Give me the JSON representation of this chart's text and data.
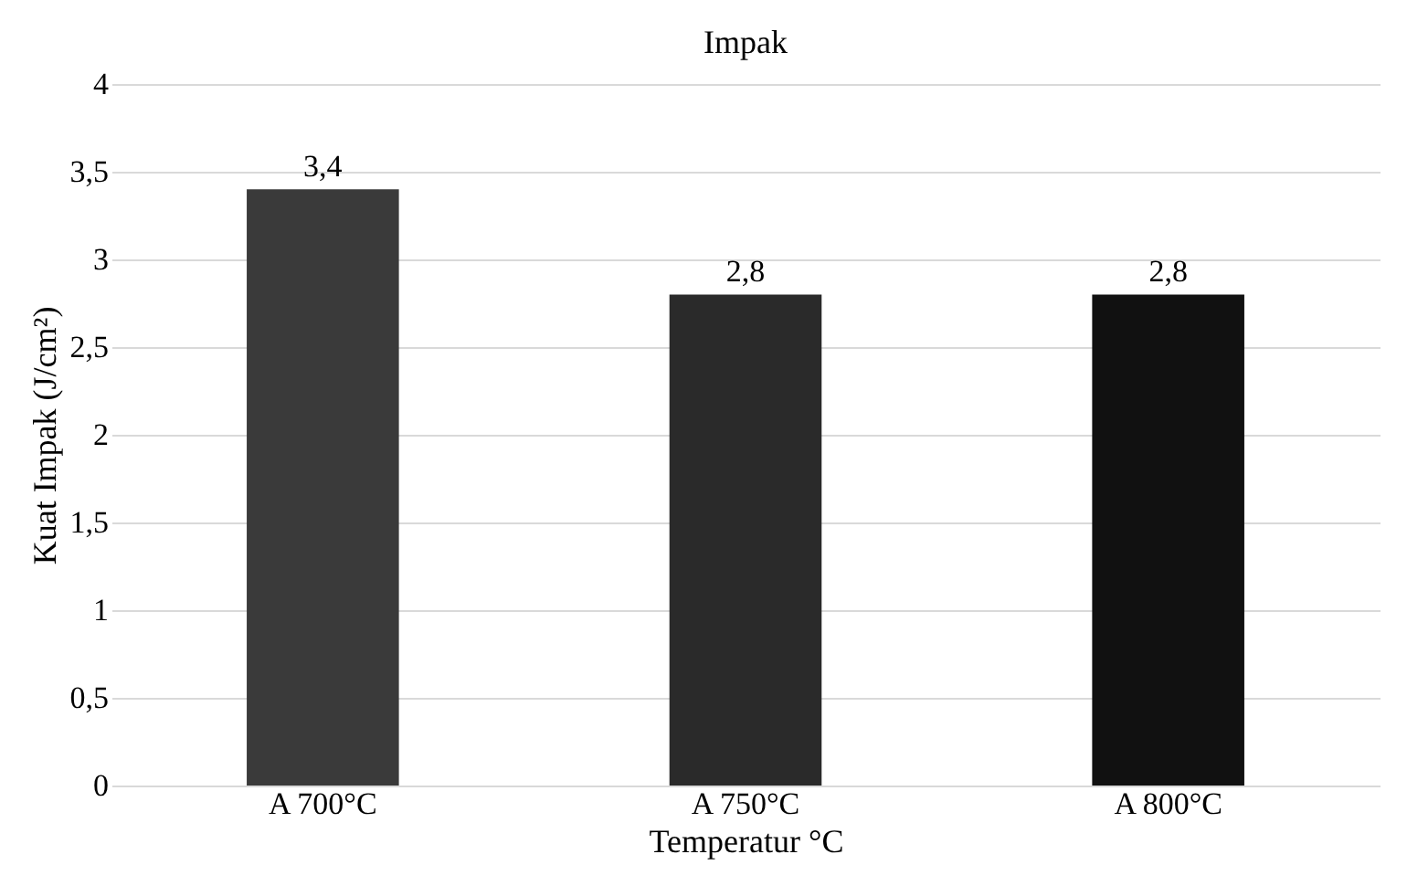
{
  "chart_data": {
    "type": "bar",
    "title": "Impak",
    "xlabel": "Temperatur  °C",
    "ylabel": "Kuat Impak (J/cm²)",
    "categories": [
      "A 700°C",
      "A 750°C",
      "A 800°C"
    ],
    "values": [
      3.4,
      2.8,
      2.8
    ],
    "colors": [
      "#3a3a3a",
      "#2a2a2a",
      "#111111"
    ],
    "value_labels": [
      "3,4",
      "2,8",
      "2,8"
    ],
    "ylim": [
      0,
      4
    ],
    "yticks": [
      0,
      {
        "value": 0.5,
        "label": "0,5"
      },
      1,
      {
        "value": 1.5,
        "label": "1,5"
      },
      2,
      {
        "value": 2.5,
        "label": "2,5"
      },
      3,
      {
        "value": 3.5,
        "label": "3,5"
      },
      4
    ],
    "grid": "y",
    "legend": false
  }
}
